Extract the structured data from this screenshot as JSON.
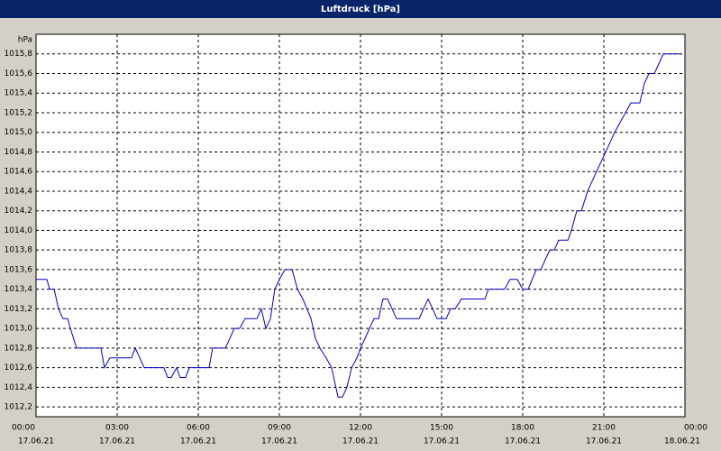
{
  "chart_data": {
    "type": "line",
    "title": "Luftdruck [hPa]",
    "y_unit": "hPa",
    "x": [
      0,
      0.4,
      0.5,
      0.67,
      0.83,
      1.0,
      1.17,
      1.27,
      1.5,
      2.4,
      2.53,
      2.73,
      3.53,
      3.67,
      4.0,
      4.73,
      4.87,
      5.0,
      5.2,
      5.33,
      5.53,
      5.67,
      6.4,
      6.53,
      7.0,
      7.17,
      7.33,
      7.53,
      7.73,
      8.17,
      8.33,
      8.5,
      8.67,
      8.83,
      9.0,
      9.2,
      9.47,
      9.67,
      9.87,
      10.17,
      10.33,
      10.5,
      10.73,
      10.93,
      11.17,
      11.33,
      11.5,
      11.67,
      11.87,
      12.0,
      12.17,
      12.33,
      12.5,
      12.67,
      12.83,
      13.0,
      13.17,
      13.33,
      14.17,
      14.33,
      14.5,
      14.67,
      14.83,
      15.17,
      15.33,
      15.5,
      15.73,
      16.6,
      16.73,
      17.33,
      17.53,
      17.8,
      18.0,
      18.2,
      18.5,
      18.67,
      18.83,
      19.0,
      19.17,
      19.33,
      19.67,
      19.8,
      20.0,
      20.17,
      20.4,
      20.73,
      21.07,
      21.4,
      21.8,
      22.0,
      22.33,
      22.5,
      22.67,
      22.87,
      23.2,
      23.87
    ],
    "series": [
      {
        "name": "Luftdruck",
        "color": "#0000c0",
        "values": [
          1013.5,
          1013.5,
          1013.4,
          1013.4,
          1013.2,
          1013.1,
          1013.1,
          1013.0,
          1012.8,
          1012.8,
          1012.6,
          1012.7,
          1012.7,
          1012.8,
          1012.6,
          1012.6,
          1012.5,
          1012.5,
          1012.6,
          1012.5,
          1012.5,
          1012.6,
          1012.6,
          1012.8,
          1012.8,
          1012.9,
          1013.0,
          1013.0,
          1013.1,
          1013.1,
          1013.2,
          1013.0,
          1013.1,
          1013.4,
          1013.5,
          1013.6,
          1013.6,
          1013.4,
          1013.3,
          1013.1,
          1012.9,
          1012.8,
          1012.7,
          1012.6,
          1012.3,
          1012.3,
          1012.4,
          1012.6,
          1012.7,
          1012.8,
          1012.9,
          1013.0,
          1013.1,
          1013.1,
          1013.3,
          1013.3,
          1013.2,
          1013.1,
          1013.1,
          1013.2,
          1013.3,
          1013.2,
          1013.1,
          1013.1,
          1013.2,
          1013.2,
          1013.3,
          1013.3,
          1013.4,
          1013.4,
          1013.5,
          1013.5,
          1013.4,
          1013.4,
          1013.6,
          1013.6,
          1013.7,
          1013.8,
          1013.8,
          1013.9,
          1013.9,
          1014.0,
          1014.2,
          1014.2,
          1014.4,
          1014.6,
          1014.8,
          1015.0,
          1015.2,
          1015.3,
          1015.3,
          1015.5,
          1015.6,
          1015.6,
          1015.8,
          1015.8
        ]
      }
    ],
    "xlim": [
      0,
      24
    ],
    "xticks": [
      {
        "value": 0,
        "label": "00:00"
      },
      {
        "value": 3,
        "label": "03:00"
      },
      {
        "value": 6,
        "label": "06:00"
      },
      {
        "value": 9,
        "label": "09:00"
      },
      {
        "value": 12,
        "label": "12:00"
      },
      {
        "value": 15,
        "label": "15:00"
      },
      {
        "value": 18,
        "label": "18:00"
      },
      {
        "value": 21,
        "label": "21:00"
      },
      {
        "value": 24,
        "label": "00:00"
      }
    ],
    "xtick_dates": [
      "17.06.21",
      "17.06.21",
      "17.06.21",
      "17.06.21",
      "17.06.21",
      "17.06.21",
      "17.06.21",
      "17.06.21",
      "18.06.21"
    ],
    "ylim": [
      1012.1,
      1016.0
    ],
    "yticks": [
      {
        "value": 1012.2,
        "label": "1012,2"
      },
      {
        "value": 1012.4,
        "label": "1012,4"
      },
      {
        "value": 1012.6,
        "label": "1012,6"
      },
      {
        "value": 1012.8,
        "label": "1012,8"
      },
      {
        "value": 1013.0,
        "label": "1013,0"
      },
      {
        "value": 1013.2,
        "label": "1013,2"
      },
      {
        "value": 1013.4,
        "label": "1013,4"
      },
      {
        "value": 1013.6,
        "label": "1013,6"
      },
      {
        "value": 1013.8,
        "label": "1013,8"
      },
      {
        "value": 1014.0,
        "label": "1014,0"
      },
      {
        "value": 1014.2,
        "label": "1014,2"
      },
      {
        "value": 1014.4,
        "label": "1014,4"
      },
      {
        "value": 1014.6,
        "label": "1014,6"
      },
      {
        "value": 1014.8,
        "label": "1014,8"
      },
      {
        "value": 1015.0,
        "label": "1015,0"
      },
      {
        "value": 1015.2,
        "label": "1015,2"
      },
      {
        "value": 1015.4,
        "label": "1015,4"
      },
      {
        "value": 1015.6,
        "label": "1015,6"
      },
      {
        "value": 1015.8,
        "label": "1015,8"
      }
    ],
    "grid": true
  }
}
